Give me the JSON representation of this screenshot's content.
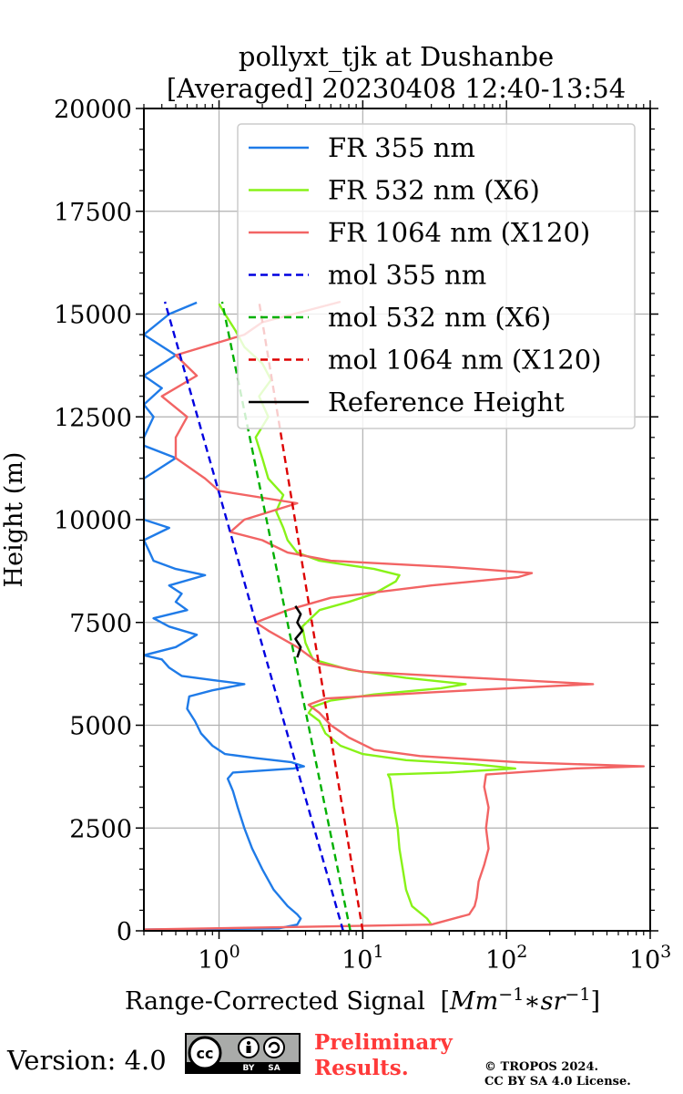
{
  "chart_data": {
    "type": "line",
    "title": "pollyxt_tjk at Dushanbe",
    "subtitle": "[Averaged] 20230408 12:40-13:54",
    "xlabel": "Range-Corrected Signal",
    "xlabel_unit": "[Mm^-1 * sr^-1]",
    "ylabel": "Height (m)",
    "xscale": "log",
    "xlim": [
      0.3,
      1000
    ],
    "ylim": [
      0,
      20000
    ],
    "grid": true,
    "legend_position": "top-right",
    "x_ticks": [
      {
        "value": 1,
        "label": "10^0"
      },
      {
        "value": 10,
        "label": "10^1"
      },
      {
        "value": 100,
        "label": "10^2"
      },
      {
        "value": 1000,
        "label": "10^3"
      }
    ],
    "y_ticks": [
      "0",
      "2500",
      "5000",
      "7500",
      "10000",
      "12500",
      "15000",
      "17500",
      "20000"
    ],
    "series": [
      {
        "name": "FR 355 nm",
        "color": "#1f7be8",
        "style": "solid",
        "points": [
          [
            0.3,
            30
          ],
          [
            2.6,
            60
          ],
          [
            3.5,
            150
          ],
          [
            3.7,
            300
          ],
          [
            3.5,
            400
          ],
          [
            3.0,
            600
          ],
          [
            2.4,
            1000
          ],
          [
            2.0,
            1500
          ],
          [
            1.7,
            2000
          ],
          [
            1.5,
            2500
          ],
          [
            1.35,
            3000
          ],
          [
            1.25,
            3400
          ],
          [
            1.15,
            3700
          ],
          [
            1.25,
            3850
          ],
          [
            3.3,
            3950
          ],
          [
            3.9,
            4000
          ],
          [
            3.2,
            4100
          ],
          [
            1.8,
            4200
          ],
          [
            1.1,
            4300
          ],
          [
            0.9,
            4500
          ],
          [
            0.75,
            4800
          ],
          [
            0.68,
            5100
          ],
          [
            0.6,
            5400
          ],
          [
            0.62,
            5700
          ],
          [
            0.9,
            5850
          ],
          [
            1.5,
            6000
          ],
          [
            0.9,
            6100
          ],
          [
            0.55,
            6200
          ],
          [
            0.45,
            6400
          ],
          [
            0.4,
            6600
          ],
          [
            0.3,
            6700
          ],
          [
            0.5,
            6900
          ],
          [
            0.7,
            7200
          ],
          [
            0.45,
            7400
          ],
          [
            0.35,
            7600
          ],
          [
            0.6,
            7800
          ],
          [
            0.5,
            8000
          ],
          [
            0.55,
            8200
          ],
          [
            0.45,
            8400
          ],
          [
            0.8,
            8650
          ],
          [
            0.5,
            8800
          ],
          [
            0.35,
            9000
          ],
          [
            0.32,
            9300
          ],
          [
            0.3,
            9500
          ],
          [
            0.45,
            9800
          ],
          [
            0.3,
            10000
          ],
          [
            0.3,
            11000
          ],
          [
            0.5,
            11500
          ],
          [
            0.3,
            11800
          ],
          [
            0.3,
            12000
          ],
          [
            0.35,
            12500
          ],
          [
            0.3,
            12800
          ],
          [
            0.4,
            13200
          ],
          [
            0.3,
            13500
          ],
          [
            0.5,
            14000
          ],
          [
            0.3,
            14500
          ],
          [
            0.45,
            15000
          ],
          [
            0.7,
            15280
          ]
        ]
      },
      {
        "name": "FR 532 nm (X6)",
        "color": "#88f218",
        "style": "solid",
        "points": [
          [
            30,
            150
          ],
          [
            28,
            300
          ],
          [
            22,
            600
          ],
          [
            20,
            1000
          ],
          [
            19,
            1500
          ],
          [
            18,
            2000
          ],
          [
            17.5,
            2500
          ],
          [
            16.5,
            3000
          ],
          [
            16,
            3400
          ],
          [
            15.5,
            3700
          ],
          [
            15,
            3800
          ],
          [
            40,
            3850
          ],
          [
            115,
            3950
          ],
          [
            60,
            4050
          ],
          [
            20,
            4150
          ],
          [
            10,
            4300
          ],
          [
            7,
            4500
          ],
          [
            5.5,
            4800
          ],
          [
            5,
            5100
          ],
          [
            4.2,
            5300
          ],
          [
            4.5,
            5450
          ],
          [
            6,
            5600
          ],
          [
            12,
            5750
          ],
          [
            35,
            5900
          ],
          [
            52,
            6000
          ],
          [
            20,
            6150
          ],
          [
            8,
            6350
          ],
          [
            4.5,
            6600
          ],
          [
            4,
            7000
          ],
          [
            3.8,
            7400
          ],
          [
            5,
            7800
          ],
          [
            8,
            8000
          ],
          [
            12,
            8200
          ],
          [
            17,
            8500
          ],
          [
            18,
            8650
          ],
          [
            12,
            8800
          ],
          [
            5,
            9000
          ],
          [
            3.5,
            9200
          ],
          [
            3,
            9500
          ],
          [
            2.8,
            9800
          ],
          [
            2.5,
            10200
          ],
          [
            2.8,
            10600
          ],
          [
            2.2,
            11000
          ],
          [
            2.0,
            11500
          ],
          [
            1.8,
            12000
          ],
          [
            2.2,
            12500
          ],
          [
            1.9,
            13000
          ],
          [
            2.3,
            13400
          ],
          [
            2.0,
            13800
          ],
          [
            1.5,
            14200
          ],
          [
            1.3,
            14600
          ],
          [
            1.1,
            15000
          ],
          [
            1.0,
            15250
          ]
        ]
      },
      {
        "name": "FR 1064 nm (X120)",
        "color": "#f26464",
        "style": "solid",
        "points": [
          [
            0.3,
            30
          ],
          [
            30,
            150
          ],
          [
            55,
            400
          ],
          [
            60,
            600
          ],
          [
            62,
            800
          ],
          [
            64,
            1200
          ],
          [
            70,
            1600
          ],
          [
            75,
            2000
          ],
          [
            72,
            2500
          ],
          [
            75,
            3000
          ],
          [
            70,
            3500
          ],
          [
            72,
            3800
          ],
          [
            300,
            3950
          ],
          [
            900,
            4000
          ],
          [
            120,
            4100
          ],
          [
            25,
            4250
          ],
          [
            12,
            4400
          ],
          [
            8,
            4700
          ],
          [
            6,
            5000
          ],
          [
            5,
            5300
          ],
          [
            4.2,
            5500
          ],
          [
            5.5,
            5650
          ],
          [
            30,
            5800
          ],
          [
            200,
            5950
          ],
          [
            400,
            6000
          ],
          [
            60,
            6150
          ],
          [
            10,
            6300
          ],
          [
            5,
            6500
          ],
          [
            3.5,
            6900
          ],
          [
            2.2,
            7300
          ],
          [
            1.8,
            7500
          ],
          [
            3.0,
            7800
          ],
          [
            6,
            8100
          ],
          [
            30,
            8400
          ],
          [
            120,
            8600
          ],
          [
            150,
            8700
          ],
          [
            40,
            8850
          ],
          [
            6,
            9000
          ],
          [
            3,
            9200
          ],
          [
            2,
            9500
          ],
          [
            1.2,
            9700
          ],
          [
            1.5,
            10000
          ],
          [
            3.5,
            10400
          ],
          [
            1.0,
            10700
          ],
          [
            0.8,
            11000
          ],
          [
            0.5,
            11500
          ],
          [
            0.5,
            12000
          ],
          [
            0.6,
            12500
          ],
          [
            0.4,
            13000
          ],
          [
            0.7,
            13500
          ],
          [
            0.5,
            14000
          ],
          [
            1.5,
            14500
          ],
          [
            2.0,
            14800
          ],
          [
            7.0,
            15300
          ]
        ]
      },
      {
        "name": "mol 355 nm",
        "color": "#0000e0",
        "style": "dashed",
        "points": [
          [
            7.3,
            0
          ],
          [
            0.42,
            15300
          ]
        ]
      },
      {
        "name": "mol 532 nm (X6)",
        "color": "#00b000",
        "style": "dashed",
        "points": [
          [
            8.2,
            0
          ],
          [
            1.05,
            15300
          ]
        ]
      },
      {
        "name": "mol 1064 nm (X120)",
        "color": "#dd0000",
        "style": "dashed",
        "points": [
          [
            10.0,
            0
          ],
          [
            1.9,
            15300
          ]
        ]
      },
      {
        "name": "Reference Height",
        "color": "#000000",
        "style": "solid",
        "points": [
          [
            3.5,
            6650
          ],
          [
            3.7,
            6900
          ],
          [
            3.4,
            7100
          ],
          [
            3.8,
            7300
          ],
          [
            3.5,
            7500
          ],
          [
            3.7,
            7700
          ],
          [
            3.4,
            7900
          ]
        ]
      }
    ]
  },
  "footer": {
    "version": "Version: 4.0",
    "cc_badge": {
      "top_text": "cc",
      "bottom_labels": [
        "BY",
        "SA"
      ],
      "icons": [
        "cc-icon",
        "attribution-icon",
        "share-alike-icon"
      ],
      "background": "#a9aba9"
    },
    "preliminary": [
      "Preliminary",
      "Results."
    ],
    "preliminary_color": "#ff3a3a",
    "copyright": [
      "© TROPOS 2024.",
      "CC BY SA 4.0 License."
    ]
  }
}
